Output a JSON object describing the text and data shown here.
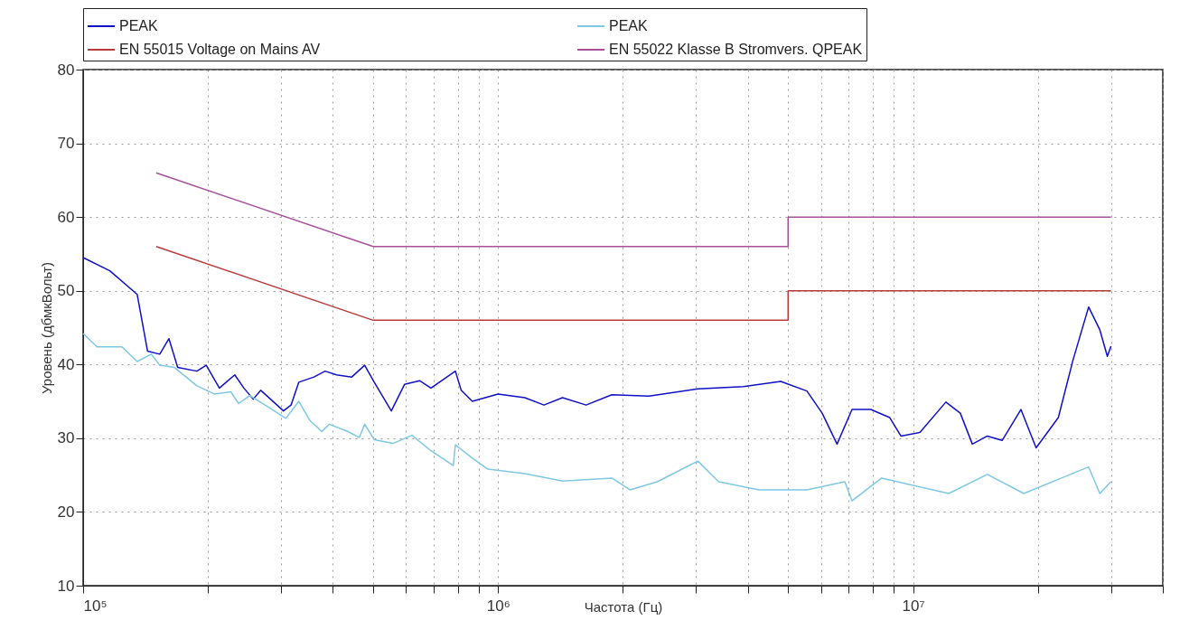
{
  "chart_data": {
    "type": "line",
    "xlabel": "Частота (Гц)",
    "ylabel": "Уровень (дбмкВольт)",
    "log": "x",
    "grid": true,
    "legend": "top",
    "xlim": [
      100000,
      40000000
    ],
    "ylim": [
      10,
      80
    ],
    "xticks": [
      {
        "value": 100000,
        "label": "10⁵"
      },
      {
        "value": 200000,
        "label": null
      },
      {
        "value": 300000,
        "label": null
      },
      {
        "value": 400000,
        "label": null
      },
      {
        "value": 500000,
        "label": null
      },
      {
        "value": 600000,
        "label": null
      },
      {
        "value": 700000,
        "label": null
      },
      {
        "value": 800000,
        "label": null
      },
      {
        "value": 900000,
        "label": null
      },
      {
        "value": 1000000,
        "label": "10⁶"
      },
      {
        "value": 2000000,
        "label": null
      },
      {
        "value": 3000000,
        "label": null
      },
      {
        "value": 4000000,
        "label": null
      },
      {
        "value": 5000000,
        "label": null
      },
      {
        "value": 6000000,
        "label": null
      },
      {
        "value": 7000000,
        "label": null
      },
      {
        "value": 8000000,
        "label": null
      },
      {
        "value": 9000000,
        "label": null
      },
      {
        "value": 10000000,
        "label": "10⁷"
      },
      {
        "value": 20000000,
        "label": null
      },
      {
        "value": 30000000,
        "label": null
      },
      {
        "value": 40000000,
        "label": null
      }
    ],
    "yticks": [
      10,
      20,
      30,
      40,
      50,
      60,
      70,
      80
    ],
    "series": [
      {
        "name": "PEAK",
        "color": "#1010c8",
        "x": [
          100000,
          116000,
          135000,
          143000,
          153000,
          161000,
          169000,
          188000,
          198000,
          213000,
          232000,
          244000,
          257000,
          268000,
          304000,
          317000,
          331000,
          360000,
          383000,
          408000,
          444000,
          477000,
          503000,
          553000,
          595000,
          647000,
          689000,
          789000,
          815000,
          867000,
          1000000,
          1160000,
          1290000,
          1430000,
          1630000,
          1880000,
          2310000,
          3030000,
          3900000,
          4800000,
          5550000,
          6040000,
          6560000,
          7130000,
          7910000,
          8790000,
          9350000,
          10400000,
          12000000,
          13000000,
          13900000,
          15100000,
          16400000,
          18200000,
          19800000,
          22400000,
          24300000,
          26500000,
          28200000,
          29400000,
          30000000
        ],
        "values": [
          54.5,
          52.7,
          49.5,
          41.8,
          41.4,
          43.5,
          39.6,
          39.1,
          39.9,
          36.8,
          38.6,
          36.8,
          35.3,
          36.5,
          33.7,
          34.5,
          37.6,
          38.3,
          39.1,
          38.6,
          38.3,
          39.9,
          37.6,
          33.7,
          37.3,
          37.8,
          36.8,
          39.1,
          36.5,
          35,
          36,
          35.5,
          34.5,
          35.5,
          34.5,
          35.9,
          35.7,
          36.7,
          37,
          37.7,
          36.4,
          33.4,
          29.2,
          33.9,
          33.9,
          32.8,
          30.3,
          30.8,
          34.9,
          33.4,
          29.2,
          30.3,
          29.7,
          33.9,
          28.7,
          32.8,
          40.6,
          47.8,
          44.7,
          41.1,
          42.5
        ]
      },
      {
        "name": "PEAK",
        "color": "#7ec8e3",
        "x": [
          100000,
          108000,
          124000,
          135000,
          146000,
          153000,
          166000,
          188000,
          207000,
          227000,
          237000,
          252000,
          280000,
          308000,
          331000,
          352000,
          376000,
          392000,
          435000,
          463000,
          477000,
          503000,
          558000,
          620000,
          689000,
          780000,
          789000,
          867000,
          945000,
          1160000,
          1430000,
          1880000,
          2080000,
          2420000,
          3030000,
          3400000,
          4250000,
          5550000,
          6850000,
          7130000,
          8400000,
          10000000,
          12200000,
          15100000,
          18500000,
          22800000,
          26500000,
          28200000,
          30000000
        ],
        "values": [
          44.2,
          42.4,
          42.4,
          40.4,
          41.4,
          39.9,
          39.6,
          37.1,
          36,
          36.3,
          34.7,
          35.8,
          34.2,
          32.7,
          35,
          32.4,
          30.9,
          31.9,
          30.9,
          30.1,
          31.9,
          29.8,
          29.3,
          30.4,
          28.3,
          26.3,
          29.1,
          27.3,
          25.8,
          25.2,
          24.2,
          24.6,
          23,
          24.1,
          26.9,
          24.1,
          23,
          23,
          24.1,
          21.5,
          24.6,
          23.6,
          22.5,
          25.1,
          22.5,
          24.6,
          26.1,
          22.5,
          24.1
        ]
      },
      {
        "name": "EN 55015 Voltage on Mains AV",
        "color": "#b83a3a",
        "x": [
          150000,
          500000,
          5000000,
          5000000,
          30000000
        ],
        "values": [
          56,
          46,
          46,
          50,
          50
        ]
      },
      {
        "name": "EN 55022 Klasse B Stromvers. QPEAK",
        "color": "#a8509a",
        "x": [
          150000,
          500000,
          5000000,
          5000000,
          30000000
        ],
        "values": [
          66,
          56,
          56,
          60,
          60
        ]
      }
    ]
  }
}
